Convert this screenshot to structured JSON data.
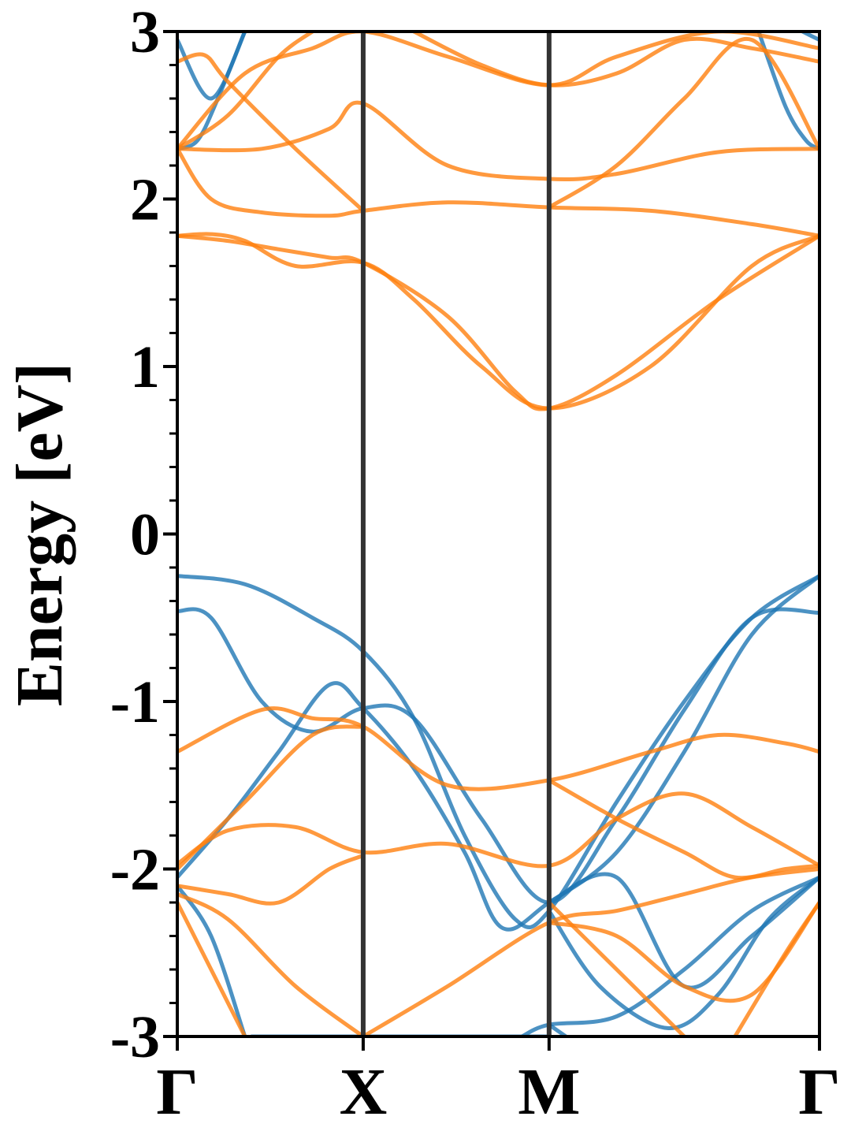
{
  "chart_data": {
    "type": "line",
    "title": "",
    "xlabel": "",
    "ylabel": "Energy [eV]",
    "ylim": [
      -3,
      3
    ],
    "yticks": [
      -3,
      -2,
      -1,
      0,
      1,
      2,
      3
    ],
    "ytick_labels": [
      "-3",
      "-2",
      "-1",
      "0",
      "1",
      "2",
      "3"
    ],
    "xlim": [
      0,
      1.9
    ],
    "kpoints": [
      {
        "label": "Γ",
        "x": 0
      },
      {
        "label": "X",
        "x": 0.55
      },
      {
        "label": "M",
        "x": 1.1
      },
      {
        "label": "Γ",
        "x": 1.9
      }
    ],
    "grid": false,
    "colors": {
      "spin_up": "#1f77b4",
      "spin_down": "#ff7f0e",
      "kpath_line": "#333333"
    },
    "series": [
      {
        "group": "spin_up",
        "x": [
          0,
          0.2,
          0.4,
          0.55,
          0.7,
          0.85,
          1.0,
          1.1,
          1.3,
          1.5,
          1.7,
          1.9
        ],
        "y": [
          -0.25,
          -0.3,
          -0.5,
          -0.7,
          -1.1,
          -1.8,
          -2.3,
          -2.25,
          -1.6,
          -1.0,
          -0.5,
          -0.25
        ]
      },
      {
        "group": "spin_up",
        "x": [
          0,
          0.1,
          0.25,
          0.4,
          0.55,
          0.7,
          0.9,
          1.1,
          1.3,
          1.5,
          1.7,
          1.9
        ],
        "y": [
          -0.46,
          -0.5,
          -1.0,
          -1.18,
          -1.04,
          -1.1,
          -1.7,
          -2.2,
          -1.7,
          -1.05,
          -0.5,
          -0.47
        ]
      },
      {
        "group": "spin_up",
        "x": [
          0,
          0.15,
          0.3,
          0.45,
          0.55,
          0.7,
          0.85,
          0.96,
          1.1,
          1.3,
          1.5,
          1.7,
          1.9
        ],
        "y": [
          -2.05,
          -1.7,
          -1.3,
          -0.9,
          -1.04,
          -1.4,
          -1.9,
          -2.35,
          -2.2,
          -1.9,
          -1.3,
          -0.6,
          -0.25
        ]
      },
      {
        "group": "spin_up",
        "x": [
          0,
          0.1,
          0.2
        ],
        "y": [
          -2.1,
          -2.4,
          -3.0
        ]
      },
      {
        "group": "spin_up",
        "x": [
          0.22,
          0.55,
          1.1
        ],
        "y": [
          -3.0,
          -3.0,
          -3.0
        ]
      },
      {
        "group": "spin_up",
        "x": [
          1.1,
          1.25,
          1.45,
          1.6,
          1.75,
          1.9
        ],
        "y": [
          -2.25,
          -2.7,
          -2.95,
          -2.75,
          -2.3,
          -2.05
        ]
      },
      {
        "group": "spin_up",
        "x": [
          1.1,
          1.3,
          1.5,
          1.7,
          1.9
        ],
        "y": [
          -2.2,
          -2.05,
          -2.7,
          -2.4,
          -2.05
        ]
      },
      {
        "group": "spin_up",
        "x": [
          1.02,
          1.1,
          1.3,
          1.5,
          1.7,
          1.9
        ],
        "y": [
          -3.0,
          -2.93,
          -2.88,
          -2.6,
          -2.25,
          -2.05
        ]
      },
      {
        "group": "spin_up",
        "x": [
          1.1,
          1.15
        ],
        "y": [
          -2.93,
          -3.0
        ]
      },
      {
        "group": "spin_up",
        "x": [
          0,
          0.1,
          0.2
        ],
        "y": [
          2.95,
          2.6,
          3.0
        ]
      },
      {
        "group": "spin_up",
        "x": [
          0,
          0.06,
          0.12,
          0.2
        ],
        "y": [
          2.3,
          2.35,
          2.6,
          3.0
        ]
      },
      {
        "group": "spin_up",
        "x": [
          1.72,
          1.8,
          1.86,
          1.9
        ],
        "y": [
          3.0,
          2.55,
          2.35,
          2.3
        ]
      },
      {
        "group": "spin_up",
        "x": [
          1.85,
          1.9
        ],
        "y": [
          3.0,
          2.95
        ]
      },
      {
        "group": "spin_down",
        "x": [
          0,
          0.25,
          0.4,
          0.55,
          0.8,
          1.1,
          1.4,
          1.6,
          1.8,
          1.9
        ],
        "y": [
          -1.3,
          -1.05,
          -1.1,
          -1.15,
          -1.5,
          -1.47,
          -1.3,
          -1.2,
          -1.25,
          -1.3
        ]
      },
      {
        "group": "spin_down",
        "x": [
          0,
          0.15,
          0.35,
          0.55,
          0.8,
          1.1,
          1.3,
          1.5,
          1.7,
          1.9
        ],
        "y": [
          -1.97,
          -1.77,
          -1.75,
          -1.9,
          -1.85,
          -1.98,
          -1.7,
          -1.55,
          -1.75,
          -1.98
        ]
      },
      {
        "group": "spin_down",
        "x": [
          0,
          0.15,
          0.3,
          0.45,
          0.55
        ],
        "y": [
          -2.1,
          -2.15,
          -2.2,
          -2.0,
          -1.92
        ]
      },
      {
        "group": "spin_down",
        "x": [
          0,
          0.2,
          0.4,
          0.55
        ],
        "y": [
          -2.0,
          -1.6,
          -1.2,
          -1.15
        ]
      },
      {
        "group": "spin_down",
        "x": [
          0,
          0.15,
          0.35,
          0.55
        ],
        "y": [
          -2.15,
          -2.3,
          -2.7,
          -3.0
        ]
      },
      {
        "group": "spin_down",
        "x": [
          0.55,
          0.8,
          1.1,
          1.3,
          1.5,
          1.7,
          1.9
        ],
        "y": [
          -3.0,
          -2.7,
          -2.32,
          -2.25,
          -2.15,
          -2.05,
          -2.0
        ]
      },
      {
        "group": "spin_down",
        "x": [
          1.1,
          1.3,
          1.5,
          1.65,
          1.8,
          1.9
        ],
        "y": [
          -1.47,
          -1.7,
          -1.9,
          -2.05,
          -2.0,
          -1.98
        ]
      },
      {
        "group": "spin_down",
        "x": [
          1.1,
          1.3,
          1.5,
          1.7,
          1.9
        ],
        "y": [
          -2.32,
          -2.4,
          -2.7,
          -2.75,
          -2.2
        ]
      },
      {
        "group": "spin_down",
        "x": [
          1.1,
          1.3,
          1.5
        ],
        "y": [
          -2.2,
          -2.6,
          -3.0
        ]
      },
      {
        "group": "spin_down",
        "x": [
          0,
          0.1,
          0.2
        ],
        "y": [
          -2.2,
          -2.6,
          -3.0
        ]
      },
      {
        "group": "spin_down",
        "x": [
          1.65,
          1.8,
          1.9
        ],
        "y": [
          -3.0,
          -2.5,
          -2.2
        ]
      },
      {
        "group": "spin_down",
        "x": [
          0,
          0.1,
          0.2,
          0.35,
          0.55,
          0.7,
          0.9,
          1.1,
          1.4,
          1.7,
          1.9
        ],
        "y": [
          1.78,
          1.79,
          1.75,
          1.6,
          1.62,
          1.4,
          1.0,
          0.75,
          1.0,
          1.6,
          1.78
        ]
      },
      {
        "group": "spin_down",
        "x": [
          0,
          0.15,
          0.3,
          0.45,
          0.55,
          0.8,
          1.0,
          1.1,
          1.3,
          1.6,
          1.9
        ],
        "y": [
          1.78,
          1.75,
          1.7,
          1.65,
          1.62,
          1.3,
          0.85,
          0.75,
          0.95,
          1.4,
          1.78
        ]
      },
      {
        "group": "spin_down",
        "x": [
          0,
          0.1,
          0.25,
          0.45,
          0.55,
          0.8,
          1.1,
          1.4,
          1.7,
          1.9
        ],
        "y": [
          2.3,
          2.0,
          1.92,
          1.9,
          1.93,
          1.98,
          1.95,
          1.93,
          1.85,
          1.78
        ]
      },
      {
        "group": "spin_down",
        "x": [
          0,
          0.25,
          0.45,
          0.55,
          0.8,
          1.1,
          1.3,
          1.6,
          1.9
        ],
        "y": [
          2.3,
          2.3,
          2.42,
          2.57,
          2.2,
          2.12,
          2.15,
          2.28,
          2.3
        ]
      },
      {
        "group": "spin_down",
        "x": [
          0,
          0.2,
          0.4,
          0.55,
          0.8,
          1.1,
          1.3,
          1.6,
          1.9
        ],
        "y": [
          2.3,
          2.75,
          2.9,
          3.0,
          2.85,
          2.68,
          2.85,
          3.0,
          2.9
        ]
      },
      {
        "group": "spin_down",
        "x": [
          0,
          0.08,
          0.15,
          0.35,
          0.55
        ],
        "y": [
          2.82,
          2.86,
          2.7,
          2.3,
          1.93
        ]
      },
      {
        "group": "spin_down",
        "x": [
          0,
          0.15,
          0.3,
          0.4
        ],
        "y": [
          2.3,
          2.5,
          2.85,
          3.0
        ]
      },
      {
        "group": "spin_down",
        "x": [
          0.7,
          0.9,
          1.1,
          1.3,
          1.5,
          1.7,
          1.9
        ],
        "y": [
          3.0,
          2.8,
          2.68,
          2.75,
          2.95,
          2.9,
          2.82
        ]
      },
      {
        "group": "spin_down",
        "x": [
          1.1,
          1.3,
          1.5,
          1.7,
          1.9
        ],
        "y": [
          1.95,
          2.2,
          2.6,
          2.95,
          2.3
        ]
      }
    ]
  }
}
